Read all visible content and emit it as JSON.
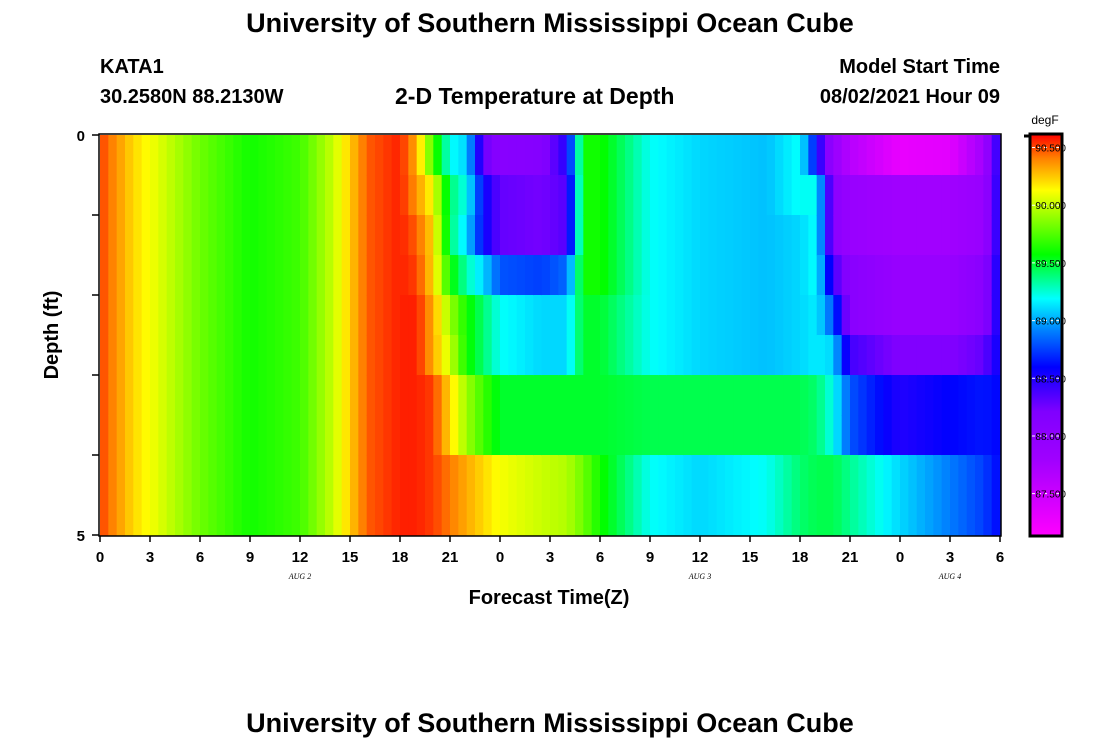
{
  "header": {
    "title": "University of Southern Mississippi Ocean Cube",
    "station_id": "KATA1",
    "coordinates": "30.2580N  88.2130W",
    "subtitle": "2-D Temperature at Depth",
    "model_start_label": "Model Start Time",
    "model_start_value": "08/02/2021 Hour 09"
  },
  "footer": {
    "title": "University of Southern Mississippi Ocean Cube"
  },
  "chart_data": {
    "type": "heatmap",
    "title": "2-D Temperature at Depth",
    "xlabel": "Forecast Time(Z)",
    "ylabel": "Depth (ft)",
    "x_hours_range": [
      0,
      54
    ],
    "y_range": [
      0,
      5
    ],
    "x_tick_hours": [
      0,
      3,
      6,
      9,
      12,
      15,
      18,
      21,
      24,
      27,
      30,
      33,
      36,
      39,
      42,
      45,
      48,
      51,
      54
    ],
    "x_tick_labels": [
      "0",
      "3",
      "6",
      "9",
      "12",
      "15",
      "18",
      "21",
      "0",
      "3",
      "6",
      "9",
      "12",
      "15",
      "18",
      "21",
      "0",
      "3",
      "6"
    ],
    "y_tick_values": [
      0,
      1,
      2,
      3,
      4,
      5
    ],
    "y_tick_labels": [
      "0",
      "",
      "",
      "",
      "",
      "5"
    ],
    "date_labels": [
      {
        "hour": 12,
        "label": "AUG 2"
      },
      {
        "hour": 36,
        "label": "AUG 3"
      },
      {
        "hour": 51,
        "label": "AUG 4"
      }
    ],
    "colorbar": {
      "units": "degF",
      "range": [
        87.15,
        90.6
      ],
      "tick_values": [
        87.5,
        88.0,
        88.5,
        89.0,
        89.5,
        90.0,
        90.5
      ],
      "tick_labels": [
        "87.500",
        "88.000",
        "88.500",
        "89.000",
        "89.500",
        "90.000",
        "90.500"
      ]
    },
    "depth_layers_ft": [
      0.25,
      0.75,
      1.25,
      1.75,
      2.25,
      2.75,
      3.25,
      3.75,
      4.25,
      4.75
    ],
    "temperature_keyframes": [
      {
        "hour": 0,
        "values": [
          90.5,
          90.5,
          90.5,
          90.5,
          90.5,
          90.5,
          90.5,
          90.5,
          90.5,
          90.5
        ]
      },
      {
        "hour": 2,
        "values": [
          90.2,
          90.2,
          90.2,
          90.2,
          90.2,
          90.2,
          90.2,
          90.2,
          90.2,
          90.2
        ]
      },
      {
        "hour": 4,
        "values": [
          90.0,
          90.0,
          90.0,
          90.0,
          90.0,
          90.0,
          90.0,
          90.0,
          90.0,
          90.0
        ]
      },
      {
        "hour": 6,
        "values": [
          89.8,
          89.8,
          89.8,
          89.8,
          89.8,
          89.8,
          89.8,
          89.8,
          89.8,
          89.8
        ]
      },
      {
        "hour": 9,
        "values": [
          89.6,
          89.6,
          89.6,
          89.6,
          89.6,
          89.6,
          89.6,
          89.6,
          89.6,
          89.6
        ]
      },
      {
        "hour": 12,
        "values": [
          89.7,
          89.7,
          89.7,
          89.7,
          89.7,
          89.7,
          89.7,
          89.7,
          89.7,
          89.7
        ]
      },
      {
        "hour": 14,
        "values": [
          90.0,
          90.0,
          90.0,
          90.0,
          90.0,
          90.0,
          90.0,
          90.0,
          90.0,
          90.0
        ]
      },
      {
        "hour": 16,
        "values": [
          90.45,
          90.45,
          90.45,
          90.45,
          90.45,
          90.45,
          90.45,
          90.45,
          90.45,
          90.45
        ]
      },
      {
        "hour": 18,
        "values": [
          90.55,
          90.55,
          90.55,
          90.55,
          90.55,
          90.55,
          90.55,
          90.55,
          90.55,
          90.55
        ]
      },
      {
        "hour": 19,
        "values": [
          90.3,
          90.35,
          90.45,
          90.5,
          90.55,
          90.55,
          90.55,
          90.55,
          90.55,
          90.55
        ]
      },
      {
        "hour": 20,
        "values": [
          89.7,
          90.1,
          90.2,
          90.2,
          90.3,
          90.3,
          90.5,
          90.5,
          90.5,
          90.5
        ]
      },
      {
        "hour": 21,
        "values": [
          89.2,
          89.4,
          89.4,
          89.6,
          89.9,
          90.0,
          90.2,
          90.2,
          90.4,
          90.4
        ]
      },
      {
        "hour": 22,
        "values": [
          89.1,
          89.2,
          89.1,
          89.3,
          89.6,
          89.6,
          89.9,
          89.9,
          90.3,
          90.3
        ]
      },
      {
        "hour": 23,
        "values": [
          88.3,
          88.6,
          88.6,
          89.1,
          89.4,
          89.4,
          89.7,
          89.7,
          90.2,
          90.2
        ]
      },
      {
        "hour": 24,
        "values": [
          88.1,
          88.3,
          88.3,
          88.8,
          89.2,
          89.2,
          89.5,
          89.5,
          90.1,
          90.1
        ]
      },
      {
        "hour": 26.5,
        "values": [
          88.15,
          88.25,
          88.25,
          88.75,
          89.1,
          89.1,
          89.5,
          89.5,
          90.0,
          90.0
        ]
      },
      {
        "hour": 28,
        "values": [
          88.5,
          88.35,
          88.35,
          88.85,
          89.1,
          89.1,
          89.5,
          89.5,
          89.95,
          89.95
        ]
      },
      {
        "hour": 29,
        "values": [
          89.6,
          89.6,
          89.6,
          89.6,
          89.5,
          89.5,
          89.5,
          89.5,
          89.8,
          89.8
        ]
      },
      {
        "hour": 30,
        "values": [
          89.6,
          89.6,
          89.6,
          89.6,
          89.5,
          89.5,
          89.5,
          89.5,
          89.6,
          89.6
        ]
      },
      {
        "hour": 33,
        "values": [
          89.2,
          89.2,
          89.2,
          89.2,
          89.2,
          89.2,
          89.45,
          89.45,
          89.2,
          89.2
        ]
      },
      {
        "hour": 36,
        "values": [
          89.1,
          89.1,
          89.1,
          89.1,
          89.1,
          89.1,
          89.45,
          89.45,
          89.1,
          89.1
        ]
      },
      {
        "hour": 40,
        "values": [
          89.05,
          89.05,
          89.05,
          89.05,
          89.05,
          89.05,
          89.45,
          89.45,
          89.2,
          89.2
        ]
      },
      {
        "hour": 42,
        "values": [
          89.2,
          89.2,
          89.1,
          89.1,
          89.1,
          89.1,
          89.45,
          89.45,
          89.4,
          89.4
        ]
      },
      {
        "hour": 43,
        "values": [
          88.6,
          89.2,
          89.2,
          89.2,
          89.15,
          89.15,
          89.4,
          89.4,
          89.45,
          89.45
        ]
      },
      {
        "hour": 44,
        "values": [
          87.9,
          88.1,
          88.1,
          88.4,
          88.8,
          89.1,
          89.2,
          89.2,
          89.45,
          89.45
        ]
      },
      {
        "hour": 45,
        "values": [
          87.65,
          87.9,
          87.9,
          88.1,
          88.1,
          88.4,
          88.8,
          88.8,
          89.35,
          89.35
        ]
      },
      {
        "hour": 48,
        "values": [
          87.3,
          87.8,
          87.8,
          87.9,
          87.9,
          88.2,
          88.5,
          88.5,
          89.1,
          89.1
        ]
      },
      {
        "hour": 51,
        "values": [
          87.35,
          87.8,
          87.8,
          87.9,
          87.9,
          88.2,
          88.6,
          88.6,
          88.9,
          88.9
        ]
      },
      {
        "hour": 53,
        "values": [
          87.8,
          87.9,
          87.9,
          88.1,
          88.1,
          88.3,
          88.65,
          88.65,
          88.75,
          88.75
        ]
      },
      {
        "hour": 54,
        "values": [
          88.6,
          88.6,
          88.6,
          88.6,
          88.6,
          88.6,
          88.6,
          88.6,
          88.6,
          88.6
        ]
      }
    ]
  }
}
